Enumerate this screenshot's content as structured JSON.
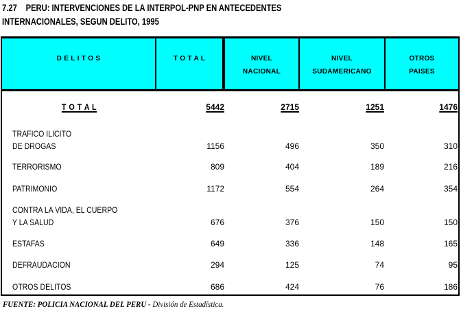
{
  "title": {
    "number": "7.27",
    "line1": "PERU: INTERVENCIONES DE LA INTERPOL-PNP EN ANTECEDENTES",
    "line2": "INTERNACIONALES, SEGUN DELITO, 1995"
  },
  "table": {
    "header": {
      "delitos": "D E L I T O S",
      "total": "T O T A L",
      "nacional_l1": "NIVEL",
      "nacional_l2": "NACIONAL",
      "sudamericano_l1": "NIVEL",
      "sudamericano_l2": "SUDAMERICANO",
      "otros_l1": "OTROS",
      "otros_l2": "PAISES"
    },
    "total_row": {
      "label": "T O T A L",
      "total": "5442",
      "nacional": "2715",
      "sudamericano": "1251",
      "otros": "1476"
    },
    "rows": [
      {
        "label": "TRAFICO ILICITO",
        "label2": "DE DROGAS",
        "total": "1156",
        "nacional": "496",
        "sudamericano": "350",
        "otros": "310"
      },
      {
        "label": "TERRORISMO",
        "total": "809",
        "nacional": "404",
        "sudamericano": "189",
        "otros": "216"
      },
      {
        "label": "PATRIMONIO",
        "total": "1172",
        "nacional": "554",
        "sudamericano": "264",
        "otros": "354"
      },
      {
        "label": "CONTRA LA VIDA, EL CUERPO",
        "label2": "Y LA SALUD",
        "total": "676",
        "nacional": "376",
        "sudamericano": "150",
        "otros": "150"
      },
      {
        "label": "ESTAFAS",
        "total": "649",
        "nacional": "336",
        "sudamericano": "148",
        "otros": "165"
      },
      {
        "label": "DEFRAUDACION",
        "total": "294",
        "nacional": "125",
        "sudamericano": "74",
        "otros": "95"
      },
      {
        "label": "OTROS DELITOS",
        "total": "686",
        "nacional": "424",
        "sudamericano": "76",
        "otros": "186"
      }
    ]
  },
  "footer": {
    "source": "FUENTE:  POLICIA NACIONAL DEL PERU - ",
    "source_detail": "División de Estadística."
  },
  "colors": {
    "header_bg": "#00FFFF",
    "border": "#000000",
    "text": "#000000"
  }
}
